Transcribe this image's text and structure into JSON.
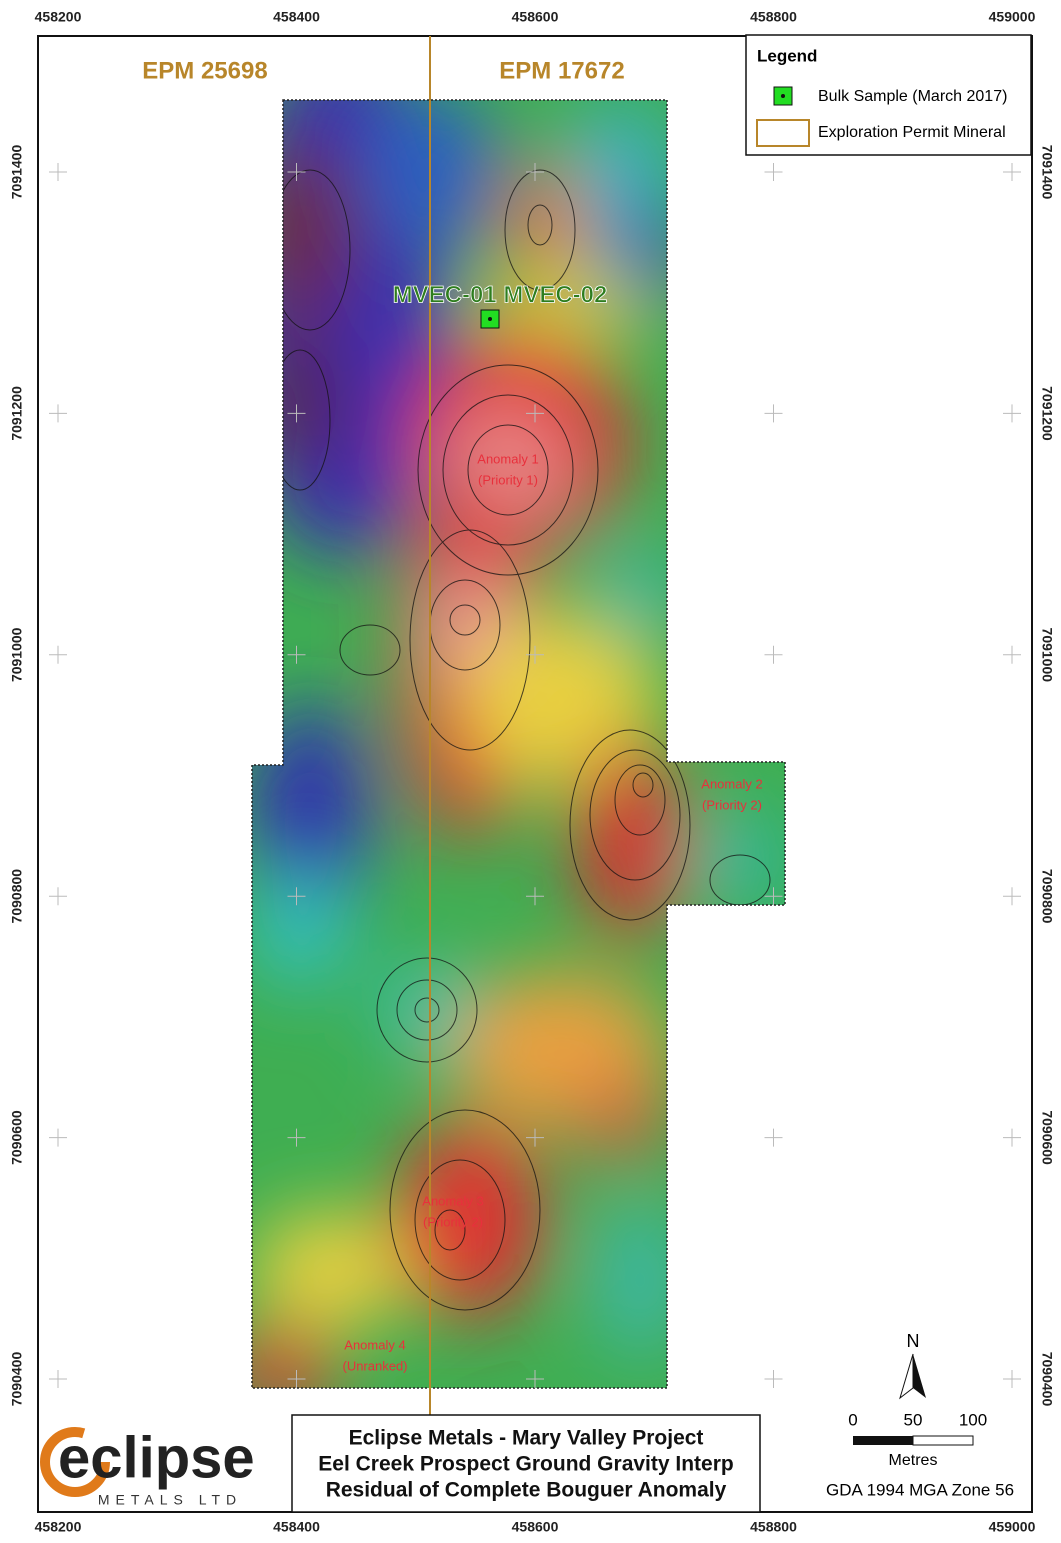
{
  "axes": {
    "top": [
      458200,
      458400,
      458600,
      458800,
      459000
    ],
    "bottom": [
      458200,
      458400,
      458600,
      458800,
      459000
    ],
    "left": [
      7091400,
      7091200,
      7091000,
      7090800,
      7090600,
      7090400
    ],
    "right": [
      7091400,
      7091200,
      7091000,
      7090800,
      7090600,
      7090400
    ]
  },
  "permits": [
    "EPM 25698",
    "EPM 17672"
  ],
  "legend": {
    "title": "Legend",
    "items": [
      "Bulk Sample (March 2017)",
      "Exploration Permit Mineral"
    ]
  },
  "sample_label": "MVEC-01 MVEC-02",
  "anomalies": [
    [
      "Anomaly 1",
      "(Priority 1)"
    ],
    [
      "Anomaly 2",
      "(Priority 2)"
    ],
    [
      "Anomaly 3",
      "(Priority 2)"
    ],
    [
      "Anomaly 4",
      "(Unranked)"
    ]
  ],
  "north": "N",
  "scale": {
    "ticks": [
      0,
      50,
      100
    ],
    "unit": "Metres"
  },
  "projection": "GDA 1994 MGA Zone 56",
  "title": [
    "Eclipse Metals - Mary Valley Project",
    "Eel Creek Prospect Ground Gravity Interp",
    "Residual of Complete Bouguer Anomaly"
  ],
  "logo": {
    "name": "eclipse",
    "sub": "METALS LTD"
  }
}
